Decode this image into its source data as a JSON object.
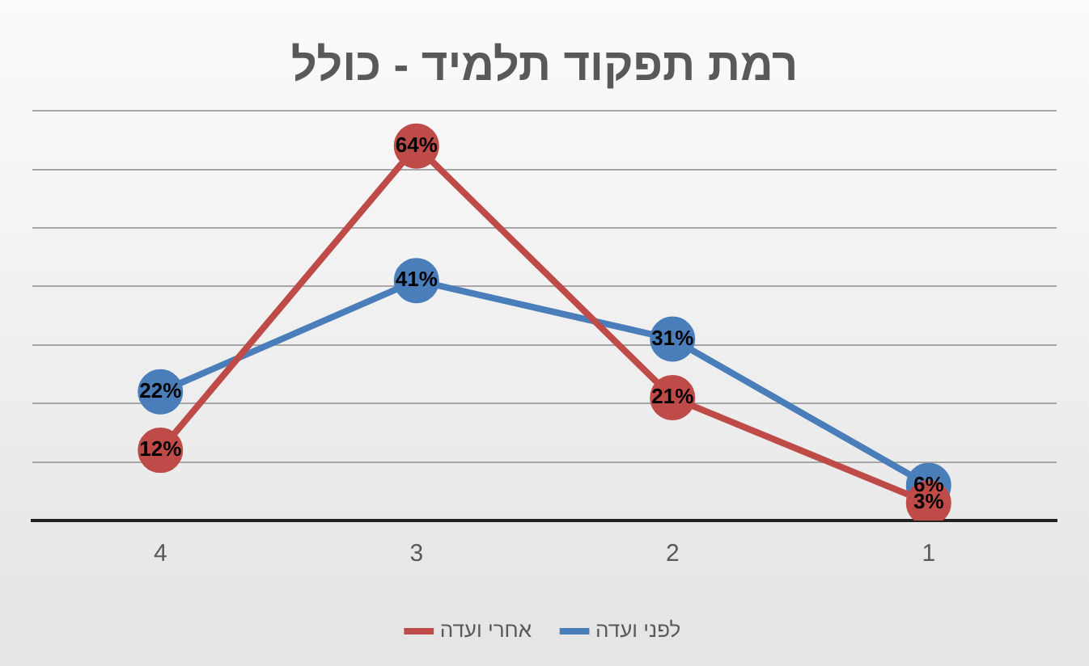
{
  "chart_data": {
    "type": "line",
    "title": "רמת תפקוד תלמיד - כולל",
    "categories": [
      "4",
      "3",
      "2",
      "1"
    ],
    "series": [
      {
        "name": "לפני ועדה",
        "color": "#4a7ebb",
        "values": [
          22,
          41,
          31,
          6
        ],
        "value_labels": [
          "22%",
          "41%",
          "31%",
          "6%"
        ]
      },
      {
        "name": "אחרי ועדה",
        "color": "#be4b48",
        "values": [
          12,
          64,
          21,
          3
        ],
        "value_labels": [
          "12%",
          "64%",
          "21%",
          "3%"
        ]
      }
    ],
    "ylim": [
      0,
      70
    ],
    "yticks": [
      {
        "value": 0,
        "label": null
      },
      {
        "value": 10,
        "label": null
      },
      {
        "value": 20,
        "label": null
      },
      {
        "value": 30,
        "label": null
      },
      {
        "value": 40,
        "label": null
      },
      {
        "value": 50,
        "label": null
      },
      {
        "value": 60,
        "label": null
      },
      {
        "value": 70,
        "label": null
      }
    ],
    "tick_labels": "x",
    "grid": "y",
    "legend": "bottom",
    "marker": "circle",
    "line_style": "solid"
  }
}
